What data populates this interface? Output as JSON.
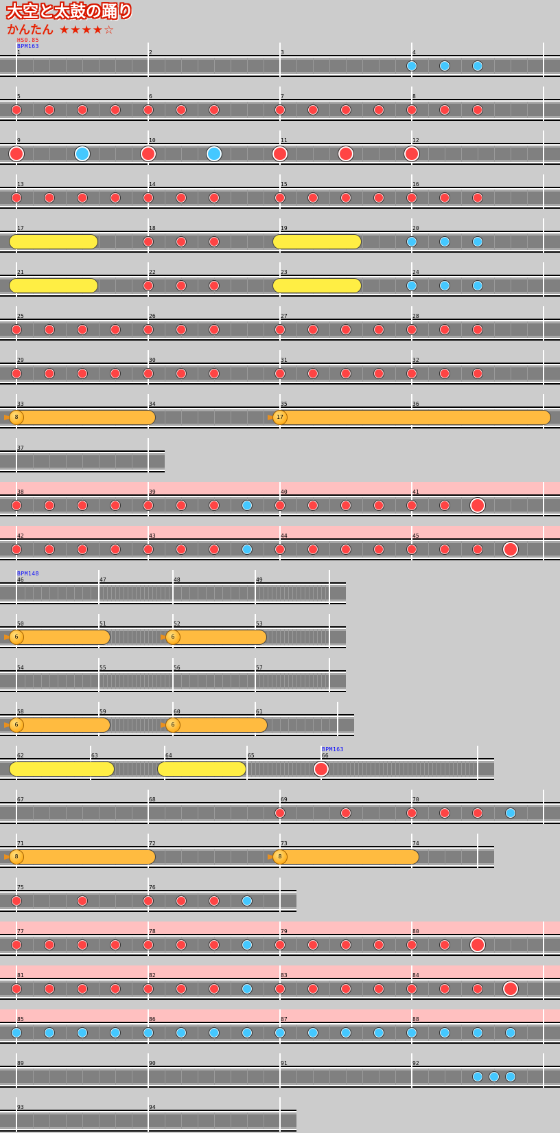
{
  "title": "大空と太鼓の踊り",
  "difficulty": "かんたん",
  "stars": "★★★★☆",
  "star_rating": 4,
  "star_max": 5,
  "note_legend": {
    "0": "empty",
    "1": "don",
    "2": "ka",
    "3": "big-don",
    "4": "big-ka",
    "5": "drumroll",
    "7": "balloon",
    "8": "roll-end"
  },
  "colors": {
    "background": "#cccccc",
    "lane": "#808080",
    "don": "#ff4444",
    "ka": "#44c8ff",
    "drumroll": "#ffee44",
    "balloon": "#ffbb40",
    "gogo": "#ffc0c0",
    "bpm_text": "#0000ff",
    "hs_text": "#ff0000",
    "title_outline": "#d81800"
  },
  "rows": [
    {
      "pink": false,
      "measures": [
        {
          "n": "1",
          "notes": "0",
          "hs": "HS0.85",
          "bpm": "BPM163"
        },
        {
          "n": "2",
          "notes": "0"
        },
        {
          "n": "3",
          "notes": "0"
        },
        {
          "n": "4",
          "notes": "2220"
        }
      ]
    },
    {
      "pink": false,
      "measures": [
        {
          "n": "5",
          "notes": "1111"
        },
        {
          "n": "6",
          "notes": "1110"
        },
        {
          "n": "7",
          "notes": "1111"
        },
        {
          "n": "8",
          "notes": "1110"
        }
      ]
    },
    {
      "pink": false,
      "measures": [
        {
          "n": "9",
          "notes": "3040"
        },
        {
          "n": "10",
          "notes": "3040"
        },
        {
          "n": "11",
          "notes": "3030"
        },
        {
          "n": "12",
          "notes": "3000"
        }
      ]
    },
    {
      "pink": false,
      "measures": [
        {
          "n": "13",
          "notes": "1111"
        },
        {
          "n": "14",
          "notes": "1110"
        },
        {
          "n": "15",
          "notes": "1111"
        },
        {
          "n": "16",
          "notes": "1110"
        }
      ]
    },
    {
      "pink": false,
      "measures": [
        {
          "n": "17",
          "notes": "5000000008000000"
        },
        {
          "n": "18",
          "notes": "1110"
        },
        {
          "n": "19",
          "notes": "5000000008000000"
        },
        {
          "n": "20",
          "notes": "2220"
        }
      ]
    },
    {
      "pink": false,
      "measures": [
        {
          "n": "21",
          "notes": "5000000008000000"
        },
        {
          "n": "22",
          "notes": "1110"
        },
        {
          "n": "23",
          "notes": "5000000008000000"
        },
        {
          "n": "24",
          "notes": "2220"
        }
      ]
    },
    {
      "pink": false,
      "measures": [
        {
          "n": "25",
          "notes": "1111"
        },
        {
          "n": "26",
          "notes": "1110"
        },
        {
          "n": "27",
          "notes": "1111"
        },
        {
          "n": "28",
          "notes": "1110"
        }
      ]
    },
    {
      "pink": false,
      "measures": [
        {
          "n": "29",
          "notes": "1111"
        },
        {
          "n": "30",
          "notes": "1110"
        },
        {
          "n": "31",
          "notes": "1111"
        },
        {
          "n": "32",
          "notes": "1110"
        }
      ]
    },
    {
      "pink": false,
      "measures": [
        {
          "n": "33",
          "notes": "7",
          "balloon": "8"
        },
        {
          "n": "34",
          "notes": "8000"
        },
        {
          "n": "35",
          "notes": "7",
          "balloon": "17"
        },
        {
          "n": "36",
          "notes": "0"
        }
      ]
    },
    {
      "pink": false,
      "measures": [
        {
          "n": "37",
          "notes": "8"
        }
      ]
    },
    {
      "pink": true,
      "measures": [
        {
          "n": "38",
          "notes": "1111"
        },
        {
          "n": "39",
          "notes": "1112"
        },
        {
          "n": "40",
          "notes": "1111"
        },
        {
          "n": "41",
          "notes": "1130"
        }
      ]
    },
    {
      "pink": true,
      "measures": [
        {
          "n": "42",
          "notes": "1111"
        },
        {
          "n": "43",
          "notes": "1112"
        },
        {
          "n": "44",
          "notes": "1111"
        },
        {
          "n": "45",
          "notes": "1113"
        }
      ]
    },
    {
      "pink": false,
      "measures": [
        {
          "n": "46",
          "notes": "0",
          "bpm": "BPM148"
        },
        {
          "n": "47",
          "notes": "0"
        },
        {
          "n": "48",
          "notes": "0"
        },
        {
          "n": "49",
          "notes": "0"
        }
      ]
    },
    {
      "pink": false,
      "measures": [
        {
          "n": "50",
          "notes": "7",
          "balloon": "6"
        },
        {
          "n": "51",
          "notes": "080000000000000000"
        },
        {
          "n": "52",
          "notes": "7",
          "balloon": "6"
        },
        {
          "n": "53",
          "notes": "080000000000000000"
        }
      ]
    },
    {
      "pink": false,
      "measures": [
        {
          "n": "54",
          "notes": "0"
        },
        {
          "n": "55",
          "notes": "0"
        },
        {
          "n": "56",
          "notes": "0"
        },
        {
          "n": "57",
          "notes": "0"
        }
      ]
    },
    {
      "pink": false,
      "measures": [
        {
          "n": "58",
          "notes": "7",
          "balloon": "6"
        },
        {
          "n": "59",
          "notes": "080000000000000000"
        },
        {
          "n": "60",
          "notes": "7",
          "balloon": "6"
        },
        {
          "n": "61",
          "notes": "080000000000000000"
        }
      ]
    },
    {
      "pink": false,
      "measures": [
        {
          "n": "62",
          "notes": "5"
        },
        {
          "n": "63",
          "notes": "000080000000000000"
        },
        {
          "n": "64",
          "notes": "5000000008"
        },
        {
          "n": "65",
          "notes": "0"
        },
        {
          "n": "66",
          "notes": "3",
          "bpm": "BPM163"
        }
      ]
    },
    {
      "pink": false,
      "measures": [
        {
          "n": "67",
          "notes": "0"
        },
        {
          "n": "68",
          "notes": "0"
        },
        {
          "n": "69",
          "notes": "1010"
        },
        {
          "n": "70",
          "notes": "1112"
        }
      ]
    },
    {
      "pink": false,
      "measures": [
        {
          "n": "71",
          "notes": "7",
          "balloon": "8"
        },
        {
          "n": "72",
          "notes": "8000"
        },
        {
          "n": "73",
          "notes": "7",
          "balloon": "8"
        },
        {
          "n": "74",
          "notes": "80"
        }
      ]
    },
    {
      "pink": false,
      "measures": [
        {
          "n": "75",
          "notes": "1010"
        },
        {
          "n": "76",
          "notes": "1112"
        }
      ]
    },
    {
      "pink": true,
      "measures": [
        {
          "n": "77",
          "notes": "1111"
        },
        {
          "n": "78",
          "notes": "1112"
        },
        {
          "n": "79",
          "notes": "1111"
        },
        {
          "n": "80",
          "notes": "1130"
        }
      ]
    },
    {
      "pink": true,
      "measures": [
        {
          "n": "81",
          "notes": "1111"
        },
        {
          "n": "82",
          "notes": "1112"
        },
        {
          "n": "83",
          "notes": "1111"
        },
        {
          "n": "84",
          "notes": "1113"
        }
      ]
    },
    {
      "pink": true,
      "measures": [
        {
          "n": "85",
          "notes": "2222"
        },
        {
          "n": "86",
          "notes": "2222"
        },
        {
          "n": "87",
          "notes": "2222"
        },
        {
          "n": "88",
          "notes": "2222"
        }
      ]
    },
    {
      "pink": false,
      "measures": [
        {
          "n": "89",
          "notes": "0"
        },
        {
          "n": "90",
          "notes": "0"
        },
        {
          "n": "91",
          "notes": "0"
        },
        {
          "n": "92",
          "notes": "00002220"
        }
      ]
    },
    {
      "pink": false,
      "measures": [
        {
          "n": "93",
          "notes": "0"
        },
        {
          "n": "94",
          "notes": "0"
        }
      ]
    }
  ]
}
